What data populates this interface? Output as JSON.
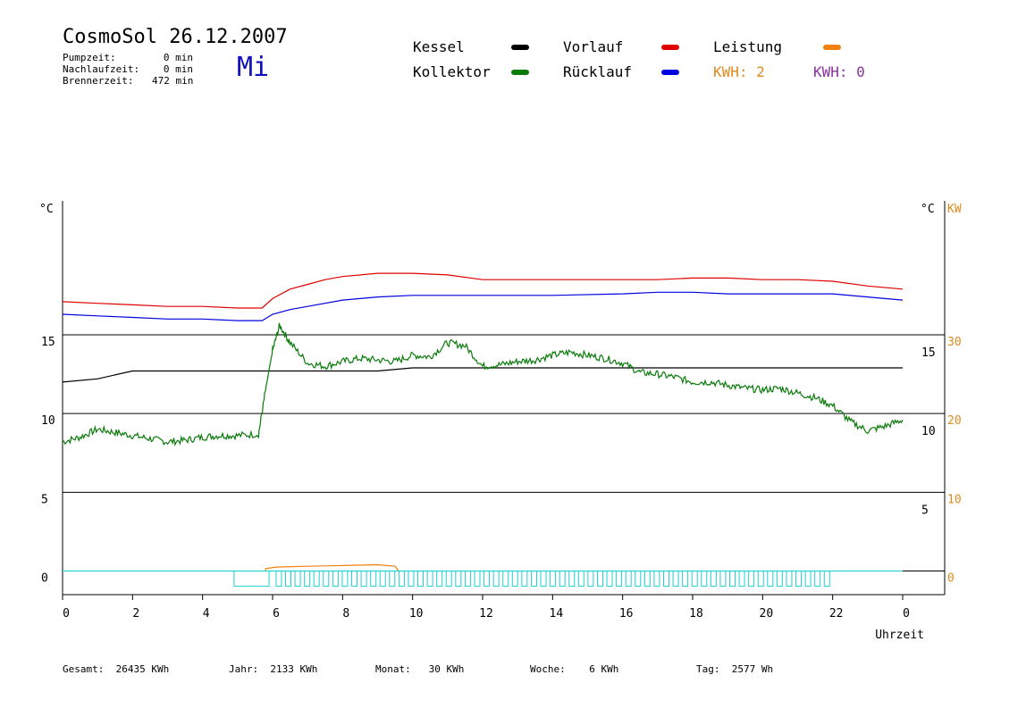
{
  "header": {
    "title": "CosmoSol 26.12.2007",
    "day": "Mi",
    "stats": [
      {
        "label": "Pumpzeit:",
        "value": "0 min"
      },
      {
        "label": "Nachlaufzeit:",
        "value": "0 min"
      },
      {
        "label": "Brennerzeit:",
        "value": "472 min"
      }
    ]
  },
  "legend": {
    "kessel": {
      "label": "Kessel",
      "color": "#000000"
    },
    "kollektor": {
      "label": "Kollektor",
      "color": "#0a7a0a"
    },
    "vorlauf": {
      "label": "Vorlauf",
      "color": "#e00000"
    },
    "ruecklauf": {
      "label": "Rücklauf",
      "color": "#0000e0"
    },
    "leistung": {
      "label": "Leistung",
      "color": "#f08010"
    },
    "kwh1": {
      "label": "KWH: 2",
      "color": "#e08a20"
    },
    "kwh2": {
      "label": "KWH: 0",
      "color": "#8a30a0"
    }
  },
  "footer": [
    {
      "label": "Gesamt:",
      "value": "26435 KWh"
    },
    {
      "label": "Jahr:",
      "value": "2133 KWh"
    },
    {
      "label": "Monat:",
      "value": "30 KWh"
    },
    {
      "label": "Woche:",
      "value": "6 KWh"
    },
    {
      "label": "Tag:",
      "value": "2577 Wh"
    }
  ],
  "chart_data": {
    "type": "line",
    "xlabel": "Uhrzeit",
    "xlim": [
      0,
      24
    ],
    "x_ticks": [
      "0",
      "2",
      "4",
      "6",
      "8",
      "10",
      "12",
      "14",
      "16",
      "18",
      "20",
      "22",
      "0"
    ],
    "y_unit_left": "°C",
    "y_unit_right": "°C",
    "y_unit_right2": "KW",
    "ylim": [
      -1.5,
      23.5
    ],
    "y_ticks_left": [
      "15",
      "10",
      "5",
      "0"
    ],
    "y_ticks_right": [
      "15",
      "10",
      "5"
    ],
    "y_ticks_kw": [
      "30",
      "20",
      "10",
      "0"
    ],
    "gridlines_y": [
      15,
      10,
      5,
      0
    ],
    "series": [
      {
        "name": "Vorlauf",
        "color": "#e00000",
        "points": [
          [
            0,
            17.1
          ],
          [
            1,
            17.0
          ],
          [
            2,
            16.9
          ],
          [
            3,
            16.8
          ],
          [
            4,
            16.8
          ],
          [
            5,
            16.7
          ],
          [
            5.7,
            16.7
          ],
          [
            6,
            17.3
          ],
          [
            6.5,
            17.9
          ],
          [
            7,
            18.2
          ],
          [
            7.5,
            18.5
          ],
          [
            8,
            18.7
          ],
          [
            9,
            18.9
          ],
          [
            10,
            18.9
          ],
          [
            11,
            18.8
          ],
          [
            12,
            18.5
          ],
          [
            13,
            18.5
          ],
          [
            14,
            18.5
          ],
          [
            15,
            18.5
          ],
          [
            16,
            18.5
          ],
          [
            17,
            18.5
          ],
          [
            18,
            18.6
          ],
          [
            19,
            18.6
          ],
          [
            20,
            18.5
          ],
          [
            21,
            18.5
          ],
          [
            22,
            18.4
          ],
          [
            23,
            18.1
          ],
          [
            24,
            17.9
          ]
        ]
      },
      {
        "name": "Rücklauf",
        "color": "#0000e0",
        "points": [
          [
            0,
            16.3
          ],
          [
            1,
            16.2
          ],
          [
            2,
            16.1
          ],
          [
            3,
            16.0
          ],
          [
            4,
            16.0
          ],
          [
            5,
            15.9
          ],
          [
            5.7,
            15.9
          ],
          [
            6,
            16.3
          ],
          [
            6.5,
            16.6
          ],
          [
            7,
            16.8
          ],
          [
            8,
            17.2
          ],
          [
            9,
            17.4
          ],
          [
            10,
            17.5
          ],
          [
            12,
            17.5
          ],
          [
            14,
            17.5
          ],
          [
            16,
            17.6
          ],
          [
            17,
            17.7
          ],
          [
            18,
            17.7
          ],
          [
            19,
            17.6
          ],
          [
            20,
            17.6
          ],
          [
            22,
            17.6
          ],
          [
            23,
            17.4
          ],
          [
            24,
            17.2
          ]
        ]
      },
      {
        "name": "Kessel",
        "color": "#000000",
        "points": [
          [
            0,
            12.0
          ],
          [
            1,
            12.2
          ],
          [
            2,
            12.7
          ],
          [
            3,
            12.7
          ],
          [
            4,
            12.7
          ],
          [
            5,
            12.7
          ],
          [
            6,
            12.7
          ],
          [
            7,
            12.7
          ],
          [
            8,
            12.7
          ],
          [
            9,
            12.7
          ],
          [
            10,
            12.9
          ],
          [
            12,
            12.9
          ],
          [
            14,
            12.9
          ],
          [
            16,
            12.9
          ],
          [
            18,
            12.9
          ],
          [
            20,
            12.9
          ],
          [
            22,
            12.9
          ],
          [
            24,
            12.9
          ]
        ]
      },
      {
        "name": "Kollektor",
        "color": "#0a7a0a",
        "points": [
          [
            0,
            8.2
          ],
          [
            0.5,
            8.5
          ],
          [
            1,
            9.0
          ],
          [
            1.5,
            8.8
          ],
          [
            2,
            8.6
          ],
          [
            2.5,
            8.4
          ],
          [
            3,
            8.2
          ],
          [
            3.5,
            8.3
          ],
          [
            4,
            8.5
          ],
          [
            4.5,
            8.6
          ],
          [
            5,
            8.6
          ],
          [
            5.6,
            8.7
          ],
          [
            5.8,
            11.5
          ],
          [
            6,
            14.0
          ],
          [
            6.2,
            15.6
          ],
          [
            6.5,
            14.5
          ],
          [
            7,
            13.2
          ],
          [
            7.5,
            13.0
          ],
          [
            8,
            13.3
          ],
          [
            8.5,
            13.5
          ],
          [
            9,
            13.4
          ],
          [
            9.5,
            13.3
          ],
          [
            10,
            13.7
          ],
          [
            10.5,
            13.6
          ],
          [
            11,
            14.5
          ],
          [
            11.5,
            14.3
          ],
          [
            12,
            13.0
          ],
          [
            12.5,
            13.1
          ],
          [
            13,
            13.3
          ],
          [
            13.5,
            13.4
          ],
          [
            14,
            13.7
          ],
          [
            14.5,
            13.9
          ],
          [
            15,
            13.7
          ],
          [
            15.5,
            13.5
          ],
          [
            16,
            13.2
          ],
          [
            16.5,
            12.6
          ],
          [
            17,
            12.5
          ],
          [
            17.5,
            12.3
          ],
          [
            18,
            12.0
          ],
          [
            18.5,
            12.0
          ],
          [
            19,
            11.8
          ],
          [
            19.5,
            11.6
          ],
          [
            20,
            11.5
          ],
          [
            20.5,
            11.6
          ],
          [
            21,
            11.3
          ],
          [
            21.5,
            11.0
          ],
          [
            22,
            10.5
          ],
          [
            22.5,
            9.5
          ],
          [
            23,
            8.9
          ],
          [
            23.5,
            9.2
          ],
          [
            24,
            9.6
          ]
        ]
      },
      {
        "name": "Leistung",
        "color": "#f08010",
        "points": [
          [
            5.8,
            0
          ],
          [
            5.8,
            0.15
          ],
          [
            6.1,
            0.25
          ],
          [
            7,
            0.3
          ],
          [
            8,
            0.35
          ],
          [
            9,
            0.4
          ],
          [
            9.5,
            0.3
          ],
          [
            9.6,
            0
          ]
        ]
      }
    ]
  }
}
